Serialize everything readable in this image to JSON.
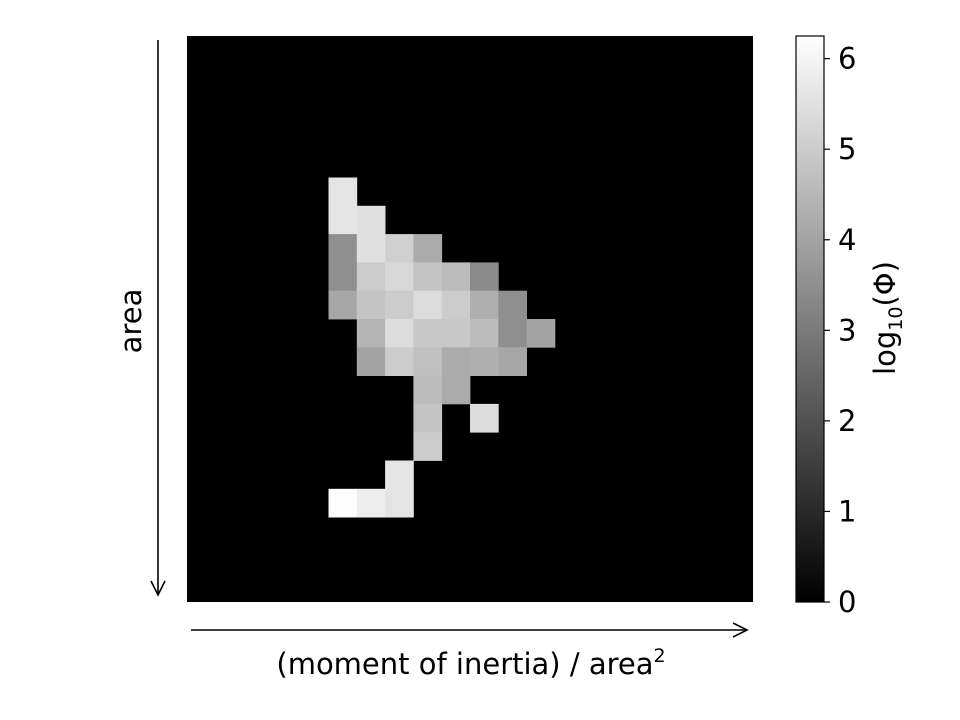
{
  "chart_data": {
    "type": "heatmap",
    "xlabel": "(moment of inertia) / area",
    "xlabel_superscript": "2",
    "ylabel": "area",
    "x_direction": "increasing-right",
    "y_direction": "increasing-down",
    "grid": false,
    "n_rows": 20,
    "n_cols": 20,
    "colormap": "gray",
    "colormap_low": "#000000",
    "colormap_high": "#ffffff",
    "zlim": [
      0,
      6.25
    ],
    "colorbar": {
      "label_prefix": "log",
      "label_subscript": "10",
      "label_suffix": "(Φ)",
      "ticks": [
        0,
        1,
        2,
        3,
        4,
        5,
        6
      ],
      "position": "right"
    },
    "cells": [
      {
        "row": 5,
        "col": 5,
        "value": 5.6
      },
      {
        "row": 6,
        "col": 5,
        "value": 5.6
      },
      {
        "row": 6,
        "col": 6,
        "value": 5.5
      },
      {
        "row": 7,
        "col": 5,
        "value": 3.5
      },
      {
        "row": 7,
        "col": 6,
        "value": 5.5
      },
      {
        "row": 7,
        "col": 7,
        "value": 5.1
      },
      {
        "row": 7,
        "col": 8,
        "value": 4.2
      },
      {
        "row": 8,
        "col": 5,
        "value": 3.5
      },
      {
        "row": 8,
        "col": 6,
        "value": 5.0
      },
      {
        "row": 8,
        "col": 7,
        "value": 5.3
      },
      {
        "row": 8,
        "col": 8,
        "value": 4.8
      },
      {
        "row": 8,
        "col": 9,
        "value": 4.6
      },
      {
        "row": 8,
        "col": 10,
        "value": 3.4
      },
      {
        "row": 9,
        "col": 5,
        "value": 4.1
      },
      {
        "row": 9,
        "col": 6,
        "value": 4.8
      },
      {
        "row": 9,
        "col": 7,
        "value": 5.0
      },
      {
        "row": 9,
        "col": 8,
        "value": 5.4
      },
      {
        "row": 9,
        "col": 9,
        "value": 5.0
      },
      {
        "row": 9,
        "col": 10,
        "value": 4.3
      },
      {
        "row": 9,
        "col": 11,
        "value": 3.5
      },
      {
        "row": 10,
        "col": 6,
        "value": 4.4
      },
      {
        "row": 10,
        "col": 7,
        "value": 5.4
      },
      {
        "row": 10,
        "col": 8,
        "value": 4.9
      },
      {
        "row": 10,
        "col": 9,
        "value": 4.9
      },
      {
        "row": 10,
        "col": 10,
        "value": 4.6
      },
      {
        "row": 10,
        "col": 11,
        "value": 3.5
      },
      {
        "row": 10,
        "col": 12,
        "value": 4.0
      },
      {
        "row": 11,
        "col": 6,
        "value": 4.0
      },
      {
        "row": 11,
        "col": 7,
        "value": 5.0
      },
      {
        "row": 11,
        "col": 8,
        "value": 4.7
      },
      {
        "row": 11,
        "col": 9,
        "value": 4.2
      },
      {
        "row": 11,
        "col": 10,
        "value": 4.3
      },
      {
        "row": 11,
        "col": 11,
        "value": 4.1
      },
      {
        "row": 12,
        "col": 8,
        "value": 4.6
      },
      {
        "row": 12,
        "col": 9,
        "value": 4.2
      },
      {
        "row": 13,
        "col": 8,
        "value": 4.8
      },
      {
        "row": 13,
        "col": 10,
        "value": 5.4
      },
      {
        "row": 14,
        "col": 8,
        "value": 5.0
      },
      {
        "row": 15,
        "col": 7,
        "value": 5.6
      },
      {
        "row": 16,
        "col": 5,
        "value": 6.2
      },
      {
        "row": 16,
        "col": 6,
        "value": 5.8
      },
      {
        "row": 16,
        "col": 7,
        "value": 5.6
      }
    ]
  }
}
